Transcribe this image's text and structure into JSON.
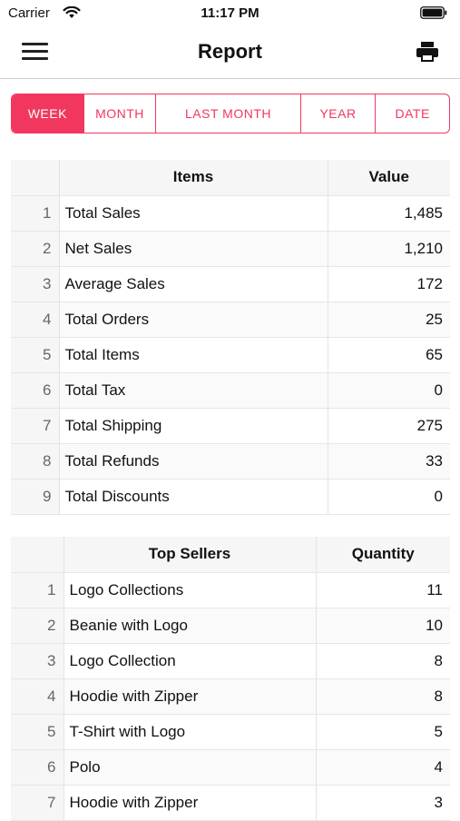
{
  "status_bar": {
    "carrier": "Carrier",
    "time": "11:17 PM"
  },
  "nav": {
    "title": "Report"
  },
  "segments": [
    {
      "label": "WEEK",
      "active": true
    },
    {
      "label": "MONTH",
      "active": false
    },
    {
      "label": "LAST MONTH",
      "active": false
    },
    {
      "label": "YEAR",
      "active": false
    },
    {
      "label": "DATE",
      "active": false
    }
  ],
  "summary": {
    "headers": {
      "items": "Items",
      "value": "Value"
    },
    "rows": [
      {
        "n": "1",
        "item": "Total Sales",
        "value": "1,485"
      },
      {
        "n": "2",
        "item": "Net Sales",
        "value": "1,210"
      },
      {
        "n": "3",
        "item": "Average Sales",
        "value": "172"
      },
      {
        "n": "4",
        "item": "Total Orders",
        "value": "25"
      },
      {
        "n": "5",
        "item": "Total Items",
        "value": "65"
      },
      {
        "n": "6",
        "item": "Total Tax",
        "value": "0"
      },
      {
        "n": "7",
        "item": "Total Shipping",
        "value": "275"
      },
      {
        "n": "8",
        "item": "Total Refunds",
        "value": "33"
      },
      {
        "n": "9",
        "item": "Total Discounts",
        "value": "0"
      }
    ]
  },
  "top_sellers": {
    "headers": {
      "name": "Top Sellers",
      "qty": "Quantity"
    },
    "rows": [
      {
        "n": "1",
        "name": "Logo Collections",
        "qty": "11"
      },
      {
        "n": "2",
        "name": "Beanie with Logo",
        "qty": "10"
      },
      {
        "n": "3",
        "name": "Logo Collection",
        "qty": "8"
      },
      {
        "n": "4",
        "name": "Hoodie with Zipper",
        "qty": "8"
      },
      {
        "n": "5",
        "name": "T-Shirt with Logo",
        "qty": "5"
      },
      {
        "n": "6",
        "name": "Polo",
        "qty": "4"
      },
      {
        "n": "7",
        "name": "Hoodie with Zipper",
        "qty": "3"
      }
    ]
  },
  "colors": {
    "accent": "#f2375f"
  }
}
